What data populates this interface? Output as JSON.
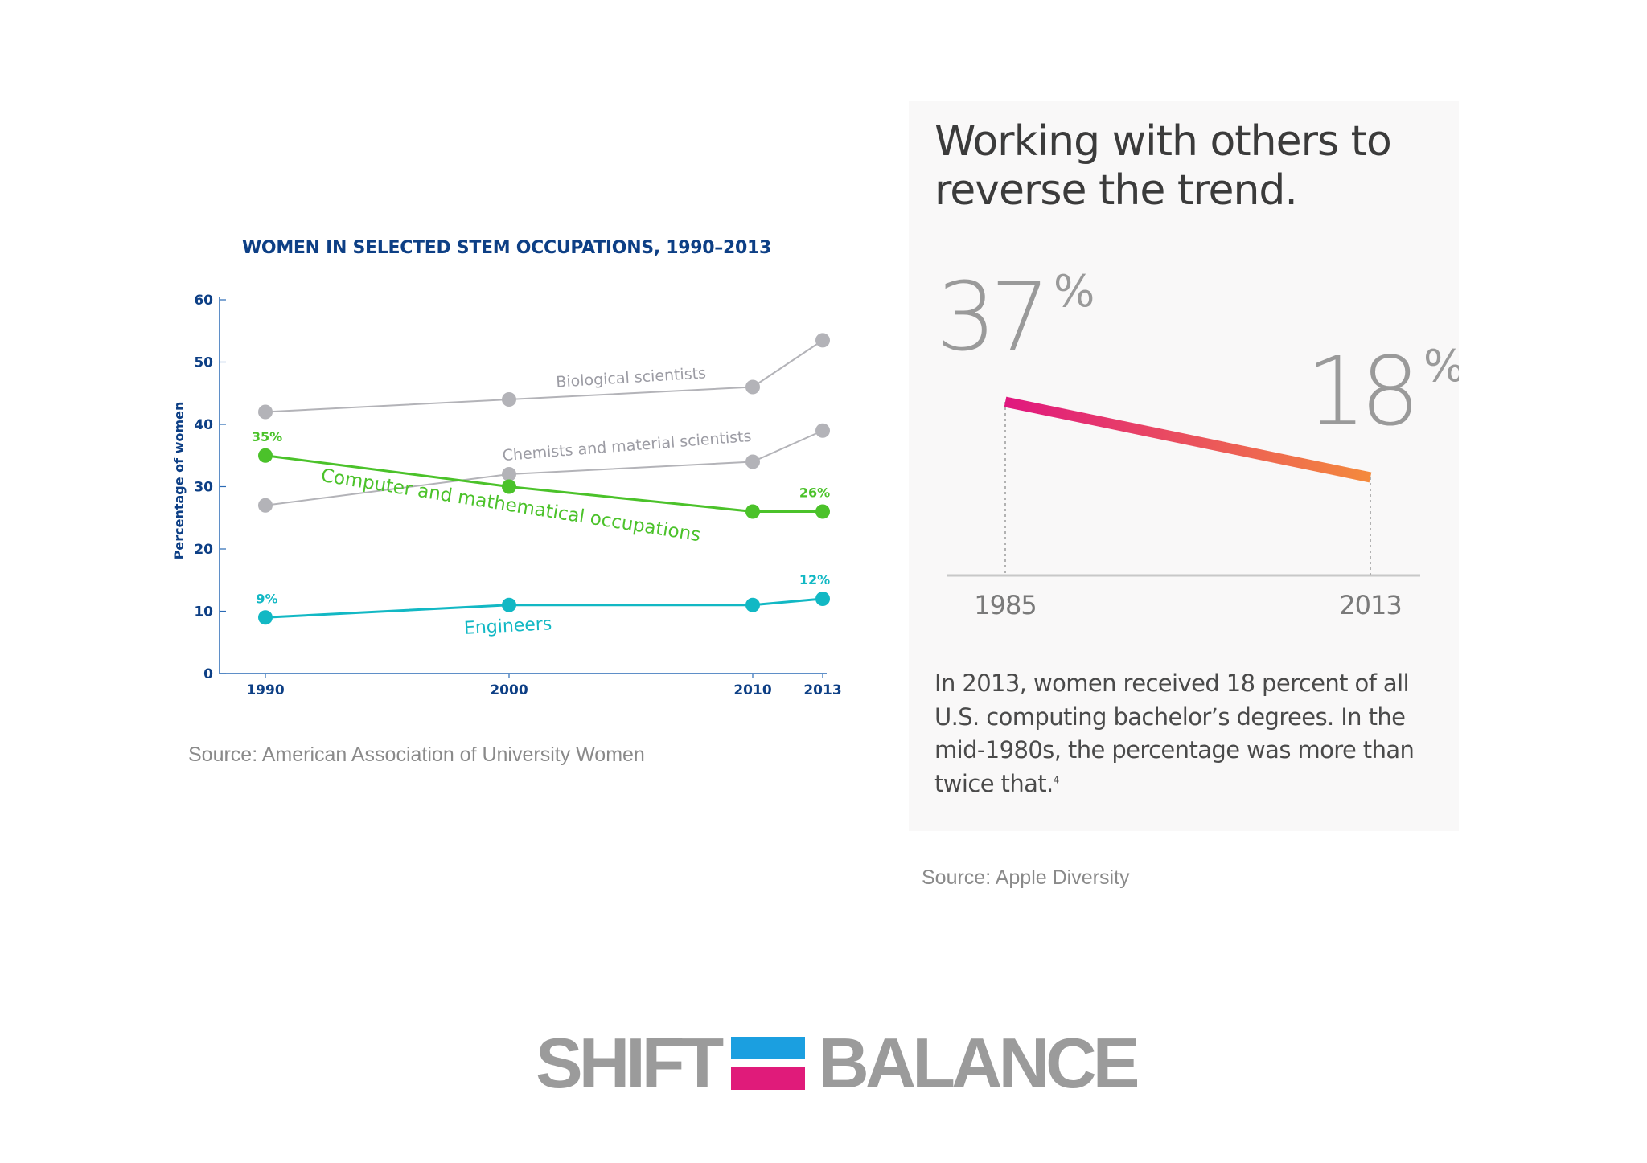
{
  "left_chart": {
    "title": "WOMEN IN SELECTED STEM OCCUPATIONS, 1990–2013",
    "source": "Source: American Association of University Women",
    "ylabel": "Percentage of women"
  },
  "right_panel": {
    "heading_line1": "Working with others to",
    "heading_line2": "reverse the trend.",
    "caption": "In 2013, women received 18 percent of all U.S. computing bachelor’s degrees. In the mid-1980s, the percentage was more than twice that.",
    "footnote": "4",
    "source": "Source: Apple Diversity"
  },
  "logo": {
    "word_left": "SHIFT",
    "word_right": "BALANCE",
    "bar_top_color": "#1b9fe0",
    "bar_bottom_color": "#e01b7a"
  },
  "chart_data": [
    {
      "type": "line",
      "title": "WOMEN IN SELECTED STEM OCCUPATIONS, 1990–2013",
      "xlabel": "",
      "ylabel": "Percentage of women",
      "x": [
        1990,
        2000,
        2010,
        2013
      ],
      "ylim": [
        0,
        60
      ],
      "yticks": [
        0,
        10,
        20,
        30,
        40,
        50,
        60
      ],
      "grid": false,
      "series": [
        {
          "name": "Biological scientists",
          "values": [
            42,
            44,
            46,
            53.5
          ],
          "color": "#b3b3b8"
        },
        {
          "name": "Chemists and material scientists",
          "values": [
            27,
            32,
            34,
            39
          ],
          "color": "#b3b3b8"
        },
        {
          "name": "Computer and mathematical occupations",
          "values": [
            35,
            30,
            26,
            26
          ],
          "color": "#4bc22a",
          "data_labels": {
            "first": "35%",
            "last": "26%"
          }
        },
        {
          "name": "Engineers",
          "values": [
            9,
            11,
            11,
            12
          ],
          "color": "#12b8c4",
          "data_labels": {
            "first": "9%",
            "last": "12%"
          }
        }
      ]
    },
    {
      "type": "line",
      "title": "",
      "x": [
        1985,
        2013
      ],
      "series": [
        {
          "name": "",
          "values": [
            37,
            18
          ],
          "color_start": "#e0177f",
          "color_end": "#f48a3c"
        }
      ],
      "data_labels": [
        "37",
        "18"
      ],
      "label_unit": "%"
    }
  ]
}
